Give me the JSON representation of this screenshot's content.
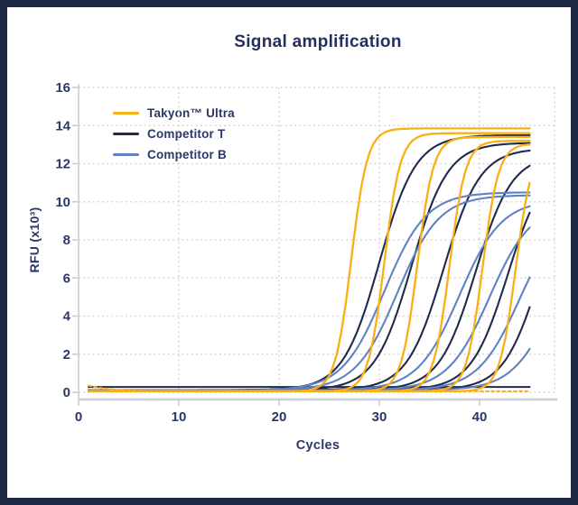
{
  "window": {
    "frame_color": "#1D2847",
    "background": "#ffffff"
  },
  "chart_data": {
    "type": "line",
    "title": "Signal amplification",
    "xlabel": "Cycles",
    "ylabel": "RFU (x10³)",
    "xlim": [
      0,
      47.5
    ],
    "ylim": [
      0,
      16
    ],
    "x_ticks": [
      0,
      10,
      20,
      30,
      40
    ],
    "y_ticks": [
      0,
      2,
      4,
      6,
      8,
      10,
      12,
      14,
      16
    ],
    "grid": "dotted",
    "legend_position": "top-left-inside",
    "cycle_range": [
      1,
      45
    ],
    "curve_model": "RFU(c) = baseline + (plateau - baseline) / (1 + exp(-steepness*(c - ct)))",
    "colors": {
      "grid": "#D4D4D4",
      "spine": "#C9CDD6",
      "tick_label": "#2A3768",
      "title": "#262F5C"
    },
    "series": [
      {
        "name": "Takyon™ Ultra",
        "color": "#F9B013",
        "line_width": 2.3,
        "steepness": 1.25,
        "baseline": 0.05,
        "curves": [
          {
            "ct": 27.2,
            "plateau": 13.85
          },
          {
            "ct": 30.5,
            "plateau": 13.6
          },
          {
            "ct": 33.8,
            "plateau": 13.4
          },
          {
            "ct": 37.0,
            "plateau": 13.2
          },
          {
            "ct": 40.3,
            "plateau": 13.05
          },
          {
            "ct": 43.6,
            "plateau": 12.9
          }
        ],
        "flat_line": {
          "style": "dashed",
          "value": 0.05,
          "start_value": 0.35
        }
      },
      {
        "name": "Competitor T",
        "color": "#1F2A4D",
        "line_width": 2.1,
        "steepness": 0.55,
        "baseline": 0.12,
        "curves": [
          {
            "ct": 30.0,
            "plateau": 13.5
          },
          {
            "ct": 33.2,
            "plateau": 13.1
          },
          {
            "ct": 36.4,
            "plateau": 12.8
          },
          {
            "ct": 39.6,
            "plateau": 12.5
          },
          {
            "ct": 42.8,
            "plateau": 12.2
          },
          {
            "ct": 46.0,
            "plateau": 12.0
          }
        ],
        "flat_line": {
          "style": "solid",
          "value": 0.28
        }
      },
      {
        "name": "Competitor B",
        "color": "#5E82C4",
        "line_width": 2.1,
        "steepness": 0.48,
        "baseline": 0.1,
        "curves": [
          {
            "ct": 30.5,
            "plateau": 10.5
          },
          {
            "ct": 31.8,
            "plateau": 10.35
          },
          {
            "ct": 38.0,
            "plateau": 10.1
          },
          {
            "ct": 41.0,
            "plateau": 9.9
          },
          {
            "ct": 44.0,
            "plateau": 9.7
          },
          {
            "ct": 47.5,
            "plateau": 9.5
          }
        ]
      }
    ]
  }
}
